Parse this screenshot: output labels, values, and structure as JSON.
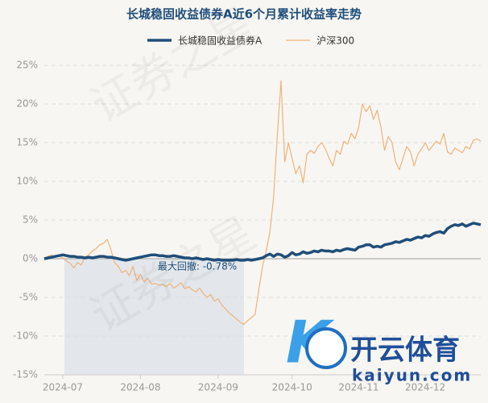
{
  "chart_data": {
    "type": "line",
    "title": "长城稳固收益债券A近6个月累计收益率走势",
    "annotation": "最大回撤: -0.78%",
    "watermarks": [
      "证券之星",
      "开云体育",
      "kaiyun.com"
    ],
    "categories": [
      null,
      null,
      null,
      null,
      null,
      "2024-07",
      null,
      null,
      null,
      null,
      null,
      null,
      null,
      null,
      null,
      null,
      null,
      null,
      null,
      null,
      null,
      null,
      null,
      null,
      null,
      null,
      "2024-08",
      null,
      null,
      null,
      null,
      null,
      null,
      null,
      null,
      null,
      null,
      null,
      null,
      null,
      null,
      null,
      null,
      null,
      null,
      null,
      null,
      "2024-09",
      null,
      null,
      null,
      null,
      null,
      null,
      null,
      null,
      null,
      null,
      null,
      null,
      null,
      null,
      null,
      null,
      null,
      null,
      null,
      "2024-10",
      null,
      null,
      null,
      null,
      null,
      null,
      null,
      null,
      null,
      null,
      null,
      null,
      null,
      null,
      null,
      null,
      null,
      "2024-11",
      null,
      null,
      null,
      null,
      null,
      null,
      null,
      null,
      null,
      null,
      null,
      null,
      null,
      null,
      null,
      null,
      null,
      "2024-12",
      null,
      null,
      null,
      null,
      null,
      null,
      null,
      null,
      null,
      null,
      null,
      null,
      null,
      null,
      null
    ],
    "series": [
      {
        "name": "长城稳固收益债券A",
        "color": "#1f4e7a",
        "width": 3.5,
        "values": [
          0,
          0.1,
          0.2,
          0.3,
          0.4,
          0.5,
          0.4,
          0.3,
          0.3,
          0.2,
          0.2,
          0.1,
          0.2,
          0.1,
          0.2,
          0.3,
          0.3,
          0.2,
          0.2,
          0.1,
          0.0,
          -0.1,
          -0.2,
          -0.1,
          0.0,
          0.1,
          0.2,
          0.3,
          0.4,
          0.5,
          0.5,
          0.4,
          0.4,
          0.3,
          0.3,
          0.4,
          0.3,
          0.2,
          0.1,
          0.1,
          0.0,
          0.1,
          0.0,
          -0.1,
          0.0,
          -0.1,
          -0.2,
          -0.1,
          -0.2,
          -0.2,
          -0.2,
          -0.2,
          -0.1,
          -0.2,
          -0.2,
          -0.1,
          -0.2,
          -0.1,
          0.0,
          0.1,
          0.4,
          0.6,
          0.3,
          0.6,
          0.5,
          0.2,
          0.4,
          0.8,
          0.5,
          0.6,
          0.9,
          0.7,
          0.8,
          1.0,
          0.9,
          1.1,
          1.0,
          1.0,
          0.9,
          1.1,
          1.0,
          1.2,
          1.3,
          1.2,
          1.1,
          1.5,
          1.6,
          1.8,
          1.8,
          1.5,
          1.6,
          1.5,
          1.8,
          1.9,
          2.0,
          2.2,
          2.1,
          2.3,
          2.5,
          2.4,
          2.6,
          2.8,
          2.7,
          3.0,
          2.9,
          3.2,
          3.4,
          3.5,
          3.3,
          3.9,
          4.2,
          4.4,
          4.3,
          4.5,
          4.2,
          4.4,
          4.6,
          4.5,
          4.4
        ]
      },
      {
        "name": "沪深300",
        "color": "#f0b27a",
        "width": 1.2,
        "values": [
          0,
          0.3,
          0.5,
          0.2,
          0.4,
          0.1,
          -0.3,
          -0.6,
          -1.2,
          -0.5,
          -0.8,
          0.2,
          0.5,
          1.0,
          1.3,
          1.8,
          2.0,
          2.5,
          1.2,
          -0.5,
          -1.0,
          -1.8,
          -1.5,
          -2.2,
          -1.0,
          -2.8,
          -2.0,
          -3.0,
          -2.5,
          -3.3,
          -3.2,
          -3.4,
          -3.3,
          -3.6,
          -3.2,
          -3.8,
          -3.5,
          -3.1,
          -3.9,
          -3.6,
          -4.0,
          -4.3,
          -3.8,
          -4.5,
          -5.0,
          -4.6,
          -5.5,
          -5.2,
          -6.0,
          -6.5,
          -7.0,
          -7.4,
          -7.8,
          -8.2,
          -8.5,
          -8.0,
          -7.6,
          -7.2,
          -4.0,
          -1.0,
          1.0,
          3.5,
          8.0,
          16.0,
          23.0,
          12.5,
          15.0,
          13.0,
          11.0,
          12.0,
          9.8,
          13.5,
          14.0,
          13.6,
          14.5,
          15.0,
          14.2,
          13.0,
          12.0,
          14.0,
          13.5,
          15.2,
          14.8,
          16.2,
          15.5,
          17.0,
          20.0,
          19.0,
          19.8,
          18.0,
          19.2,
          17.0,
          14.0,
          15.8,
          15.0,
          12.5,
          11.5,
          13.0,
          14.5,
          13.8,
          12.0,
          13.5,
          14.2,
          15.0,
          14.0,
          14.6,
          15.2,
          14.8,
          16.2,
          13.8,
          13.5,
          14.3,
          14.0,
          13.7,
          14.5,
          14.2,
          15.3,
          15.5,
          15.2
        ]
      }
    ],
    "ylim": [
      -15,
      25
    ],
    "yticks": [
      {
        "value": -15,
        "label": "-15%"
      },
      {
        "value": -10,
        "label": "-10%"
      },
      {
        "value": -5,
        "label": "-5%"
      },
      {
        "value": 0,
        "label": "0%"
      },
      {
        "value": 5,
        "label": "5%"
      },
      {
        "value": 10,
        "label": "10%"
      },
      {
        "value": 15,
        "label": "15%"
      },
      {
        "value": 20,
        "label": "20%"
      },
      {
        "value": 25,
        "label": "25%"
      }
    ],
    "grid": true
  }
}
